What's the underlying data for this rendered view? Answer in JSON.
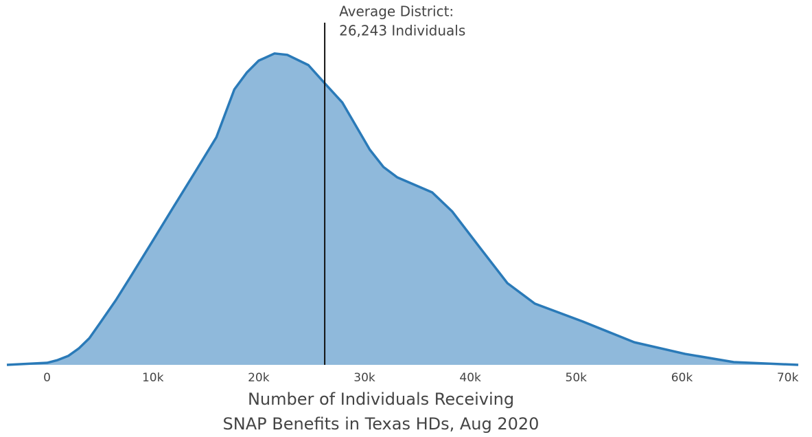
{
  "chart_data": {
    "type": "area",
    "x": [
      -3800,
      0,
      1000,
      2000,
      3000,
      4000,
      5000,
      6500,
      8000,
      10000,
      12000,
      14000,
      16000,
      17700,
      18900,
      20000,
      21500,
      22700,
      24700,
      26300,
      27900,
      30500,
      31800,
      33100,
      36400,
      38300,
      40900,
      43500,
      46100,
      50600,
      55500,
      60300,
      64900,
      71000
    ],
    "values": [
      0,
      0.6,
      1.4,
      2.6,
      4.8,
      7.8,
      12.2,
      18.9,
      26.3,
      36.3,
      46.4,
      56.4,
      66.5,
      80.5,
      85.5,
      88.9,
      91.0,
      90.6,
      87.6,
      82.1,
      76.7,
      62.9,
      57.8,
      54.8,
      50.4,
      44.8,
      34.3,
      23.9,
      17.9,
      12.7,
      6.6,
      3.2,
      0.8,
      0
    ],
    "color": "#8fb9db",
    "line_color": "#2a7ab8",
    "xlim": [
      -3800,
      71000
    ],
    "ylim": [
      0,
      100
    ],
    "xticks": [
      0,
      {
        "value": 10000,
        "label": "10k"
      },
      {
        "value": 20000,
        "label": "20k"
      },
      {
        "value": 30000,
        "label": "30k"
      },
      {
        "value": 40000,
        "label": "40k"
      },
      {
        "value": 50000,
        "label": "50k"
      },
      {
        "value": 60000,
        "label": "60k"
      },
      {
        "value": 70000,
        "label": "70k"
      }
    ],
    "xlabel": [
      "Number of Individuals Receiving",
      "SNAP Benefits in Texas HDs, Aug 2020"
    ],
    "annotation": {
      "x": 26243,
      "lines": [
        "Average District:",
        "26,243 Individuals"
      ]
    }
  }
}
